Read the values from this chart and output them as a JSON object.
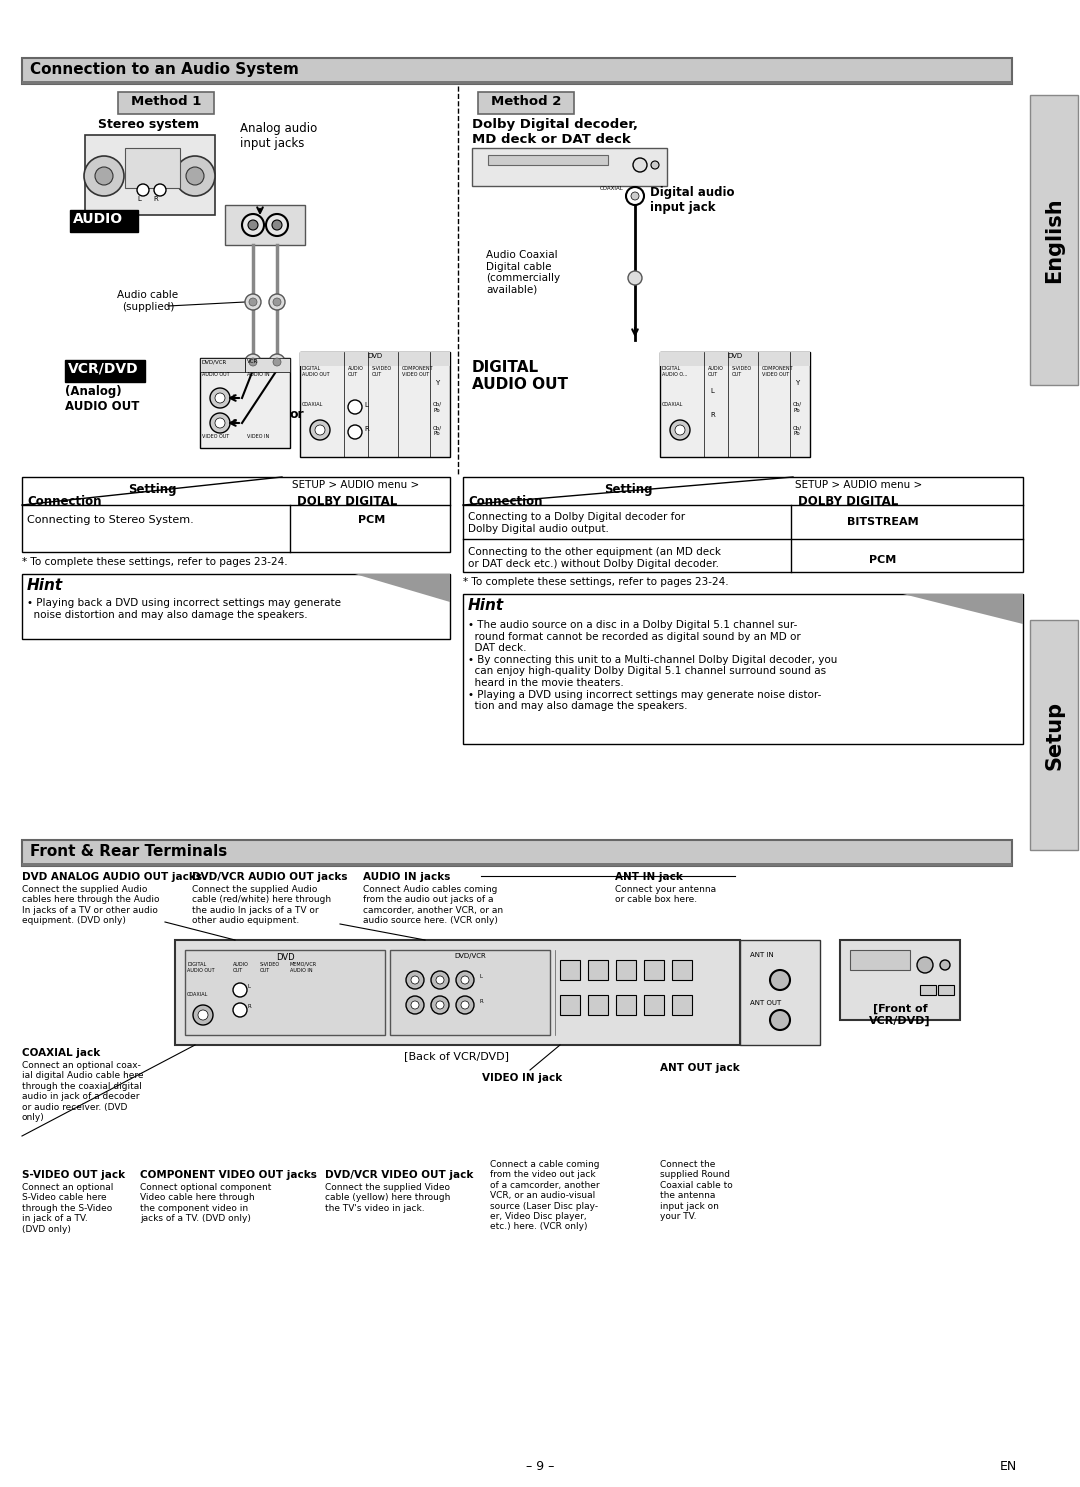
{
  "page_bg": "#ffffff",
  "section1_title": "Connection to an Audio System",
  "section2_title": "Front & Rear Terminals",
  "method1_label": "Method 1",
  "method2_label": "Method 2",
  "stereo_system_label": "Stereo system",
  "analog_audio_label": "Analog audio\ninput jacks",
  "audio_label": "AUDIO",
  "vcrdvd_label": "VCR/DVD",
  "analog_audio_out_label": "(Analog)\nAUDIO OUT",
  "audio_cable_label": "Audio cable\n(supplied)",
  "or_label": "or",
  "digital_label": "DIGITAL\nAUDIO OUT",
  "dolby_label": "Dolby Digital decoder,\nMD deck or DAT deck",
  "digital_audio_input_label": "Digital audio\ninput jack",
  "audio_coaxial_label": "Audio Coaxial\nDigital cable\n(commercially\navailable)",
  "table1_header_setting": "Setting",
  "table1_header_menu": "SETUP > AUDIO menu >",
  "table1_header_connection": "Connection",
  "table1_header_dolby": "DOLBY DIGITAL",
  "table1_row1_col1": "Connecting to Stereo System.",
  "table1_row1_col2": "PCM",
  "table1_note": "* To complete these settings, refer to pages 23-24.",
  "hint1_title": "Hint",
  "hint1_text": "• Playing back a DVD using incorrect settings may generate\n  noise distortion and may also damage the speakers.",
  "table2_header_setting": "Setting",
  "table2_header_menu": "SETUP > AUDIO menu >",
  "table2_header_connection": "Connection",
  "table2_header_dolby": "DOLBY DIGITAL",
  "table2_row1_col1": "Connecting to a Dolby Digital decoder for\nDolby Digital audio output.",
  "table2_row1_col2": "BITSTREAM",
  "table2_row2_col1": "Connecting to the other equipment (an MD deck\nor DAT deck etc.) without Dolby Digital decoder.",
  "table2_row2_col2": "PCM",
  "table2_note": "* To complete these settings, refer to pages 23-24.",
  "hint2_title": "Hint",
  "hint2_text": "• The audio source on a disc in a Dolby Digital 5.1 channel sur-\n  round format cannot be recorded as digital sound by an MD or\n  DAT deck.\n• By connecting this unit to a Multi-channel Dolby Digital decoder, you\n  can enjoy high-quality Dolby Digital 5.1 channel surround sound as\n  heard in the movie theaters.\n• Playing a DVD using incorrect settings may generate noise distor-\n  tion and may also damage the speakers.",
  "dvd_analog_title": "DVD ANALOG AUDIO OUT jacks",
  "dvd_analog_text": "Connect the supplied Audio\ncables here through the Audio\nIn jacks of a TV or other audio\nequipment. (DVD only)",
  "dvdvcr_audio_title": "DVD/VCR AUDIO OUT jacks",
  "dvdvcr_audio_text": "Connect the supplied Audio\ncable (red/white) here through\nthe audio In jacks of a TV or\nother audio equipment.",
  "audio_in_title": "AUDIO IN jacks",
  "audio_in_text": "Connect Audio cables coming\nfrom the audio out jacks of a\ncamcorder, another VCR, or an\naudio source here. (VCR only)",
  "ant_in_title": "ANT IN jack",
  "ant_in_text": "Connect your antenna\nor cable box here.",
  "coaxial_title": "COAXIAL jack",
  "coaxial_text": "Connect an optional coax-\nial digital Audio cable here\nthrough the coaxial digital\naudio in jack of a decoder\nor audio receiver. (DVD\nonly)",
  "svideo_title": "S-VIDEO OUT jack",
  "svideo_text": "Connect an optional\nS-Video cable here\nthrough the S-Video\nin jack of a TV.\n(DVD only)",
  "component_title": "COMPONENT VIDEO OUT jacks",
  "component_text": "Connect optional component\nVideo cable here through\nthe component video in\njacks of a TV. (DVD only)",
  "dvdvcr_video_title": "DVD/VCR VIDEO OUT jack",
  "dvdvcr_video_text": "Connect the supplied Video\ncable (yellow) here through\nthe TV's video in jack.",
  "video_in_title": "VIDEO IN jack",
  "video_in_text": "Connect a cable coming\nfrom the video out jack\nof a camcorder, another\nVCR, or an audio-visual\nsource (Laser Disc play-\ner, Video Disc player,\netc.) here. (VCR only)",
  "ant_out_title": "ANT OUT jack",
  "ant_out_text": "Connect the\nsupplied Round\nCoaxial cable to\nthe antenna\ninput jack on\nyour TV.",
  "back_label": "[Back of VCR/DVD]",
  "front_label": "[Front of\nVCR/DVD]",
  "page_num": "– 9 –",
  "en_label": "EN",
  "english_text": "English",
  "setup_text": "Setup"
}
